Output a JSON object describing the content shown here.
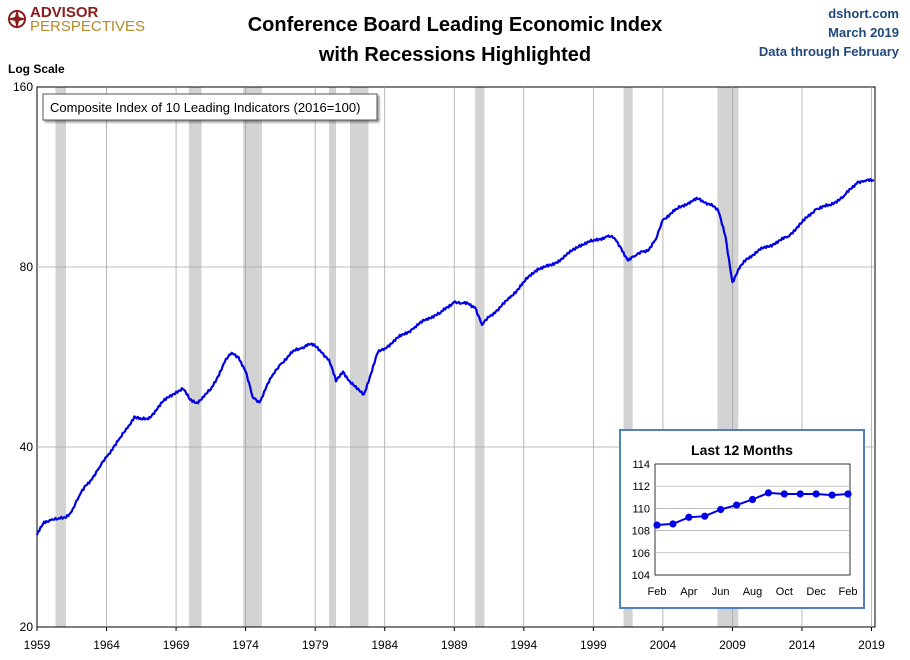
{
  "logo": {
    "main": "ADVISOR",
    "sub": "PERSPECTIVES"
  },
  "title_lines": [
    "Conference Board Leading Economic Index",
    "with Recessions Highlighted"
  ],
  "source": {
    "site": "dshort.com",
    "date": "March 2019",
    "note": "Data through February"
  },
  "colors": {
    "series": "#0000e6",
    "recession": "#d3d3d3",
    "inset_border": "#4f81bd",
    "grid": "#a6a6a6",
    "note_text": "#1f497d"
  },
  "chart_data": [
    {
      "type": "line",
      "title": "Conference Board Leading Economic Index with Recessions Highlighted",
      "ylabel": "Log Scale",
      "yscale": "log",
      "ylim": [
        20,
        160
      ],
      "xlim": [
        1959,
        2019.25
      ],
      "y_ticks": [
        20,
        40,
        80,
        160
      ],
      "x_ticks": [
        1959,
        1964,
        1969,
        1974,
        1979,
        1984,
        1989,
        1994,
        1999,
        2004,
        2009,
        2014,
        2019
      ],
      "legend": "Composite Index of 10 Leading Indicators (2016=100)",
      "legend_placement": "top-left",
      "grid": true,
      "recessions": [
        [
          1960.33,
          1961.08
        ],
        [
          1969.92,
          1970.83
        ],
        [
          1973.83,
          1975.17
        ],
        [
          1980.0,
          1980.5
        ],
        [
          1981.5,
          1982.83
        ],
        [
          1990.5,
          1991.17
        ],
        [
          2001.17,
          2001.83
        ],
        [
          2007.92,
          2009.42
        ]
      ],
      "series": [
        {
          "x": [
            1959.0,
            1959.5,
            1960.0,
            1960.5,
            1961.0,
            1961.5,
            1962.0,
            1962.5,
            1963.0,
            1963.5,
            1964.0,
            1964.5,
            1965.0,
            1965.5,
            1966.0,
            1966.5,
            1967.0,
            1967.5,
            1968.0,
            1968.5,
            1969.0,
            1969.5,
            1970.0,
            1970.5,
            1971.0,
            1971.5,
            1972.0,
            1972.5,
            1973.0,
            1973.5,
            1974.0,
            1974.5,
            1975.0,
            1975.5,
            1976.0,
            1976.5,
            1977.0,
            1977.5,
            1978.0,
            1978.5,
            1979.0,
            1979.5,
            1980.0,
            1980.5,
            1981.0,
            1981.5,
            1982.0,
            1982.5,
            1983.0,
            1983.5,
            1984.0,
            1985.0,
            1986.0,
            1987.0,
            1988.0,
            1989.0,
            1989.5,
            1990.0,
            1990.5,
            1991.0,
            1991.5,
            1992.0,
            1993.0,
            1994.0,
            1995.0,
            1996.0,
            1997.0,
            1998.0,
            1999.0,
            2000.0,
            2000.5,
            2001.0,
            2001.5,
            2002.0,
            2002.5,
            2003.0,
            2003.5,
            2004.0,
            2005.0,
            2006.0,
            2006.5,
            2007.0,
            2007.5,
            2008.0,
            2008.5,
            2009.0,
            2009.5,
            2010.0,
            2011.0,
            2012.0,
            2013.0,
            2014.0,
            2015.0,
            2016.0,
            2017.0,
            2018.0,
            2018.5,
            2019.17
          ],
          "values": [
            28.5,
            30.0,
            30.2,
            30.3,
            30.5,
            31.2,
            33.0,
            34.5,
            35.5,
            37.0,
            38.5,
            40.0,
            41.5,
            43.0,
            45.0,
            44.5,
            44.5,
            46.0,
            47.5,
            48.5,
            49.5,
            50.0,
            48.0,
            47.5,
            48.5,
            50.0,
            52.5,
            55.5,
            57.5,
            56.5,
            53.5,
            48.5,
            47.5,
            50.5,
            53.0,
            55.0,
            56.5,
            58.0,
            58.5,
            59.5,
            59.0,
            57.5,
            56.0,
            51.5,
            53.5,
            51.5,
            50.0,
            49.0,
            53.0,
            57.5,
            58.5,
            61.0,
            63.0,
            65.5,
            67.0,
            70.0,
            69.5,
            69.5,
            68.5,
            64.0,
            66.0,
            67.5,
            71.0,
            75.5,
            79.5,
            80.5,
            83.5,
            87.0,
            88.5,
            90.0,
            89.5,
            86.0,
            82.0,
            83.5,
            85.0,
            85.5,
            89.0,
            96.0,
            100.0,
            103.0,
            104.0,
            102.5,
            102.0,
            99.0,
            90.0,
            75.5,
            79.5,
            82.5,
            85.5,
            87.5,
            90.0,
            95.0,
            100.0,
            101.5,
            105.0,
            111.0,
            111.5,
            111.5
          ]
        }
      ]
    },
    {
      "type": "line",
      "title": "Last 12 Months",
      "categories": [
        "Feb",
        "Mar",
        "Apr",
        "May",
        "Jun",
        "Jul",
        "Aug",
        "Sep",
        "Oct",
        "Nov",
        "Dec",
        "Jan",
        "Feb"
      ],
      "x_tick_labels": [
        "Feb",
        "Apr",
        "Jun",
        "Aug",
        "Oct",
        "Dec",
        "Feb"
      ],
      "values": [
        108.5,
        108.6,
        109.2,
        109.3,
        109.9,
        110.3,
        110.8,
        111.4,
        111.3,
        111.3,
        111.3,
        111.2,
        111.3
      ],
      "ylim": [
        104,
        114
      ],
      "y_ticks": [
        104,
        106,
        108,
        110,
        112,
        114
      ],
      "grid": true,
      "placement": "bottom-right"
    }
  ]
}
